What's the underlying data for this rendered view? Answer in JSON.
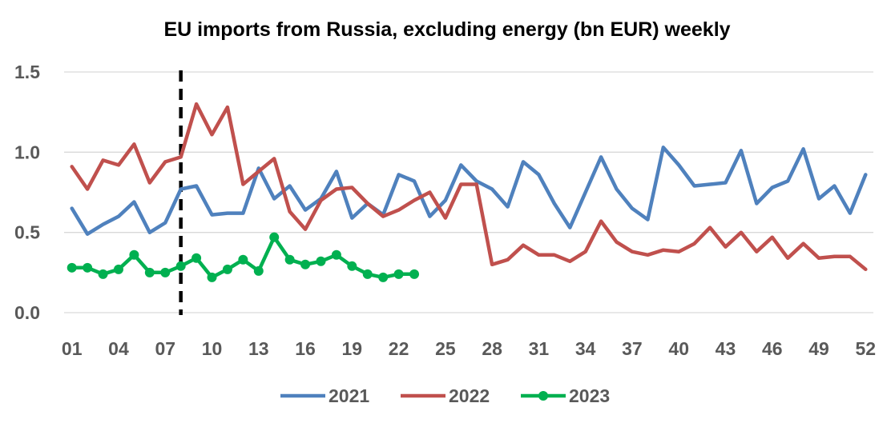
{
  "chart_data": {
    "type": "line",
    "title": "EU imports from Russia, excluding energy (bn EUR) weekly",
    "xlabel": "",
    "ylabel": "",
    "ylim": [
      0,
      1.5
    ],
    "yticks": [
      "0.0",
      "0.5",
      "1.0",
      "1.5"
    ],
    "grid": "horizontal",
    "legend_position": "bottom",
    "x_ticks": [
      "01",
      "04",
      "07",
      "10",
      "13",
      "16",
      "19",
      "22",
      "25",
      "28",
      "31",
      "34",
      "37",
      "40",
      "43",
      "46",
      "49",
      "52"
    ],
    "reference_line": {
      "week": 8,
      "style": "dashed",
      "color": "#000000"
    },
    "series": [
      {
        "name": "2021",
        "color": "#4F81BD",
        "markers": false,
        "x": [
          1,
          2,
          3,
          4,
          5,
          6,
          7,
          8,
          9,
          10,
          11,
          12,
          13,
          14,
          15,
          16,
          17,
          18,
          19,
          20,
          21,
          22,
          23,
          24,
          25,
          26,
          27,
          28,
          29,
          30,
          31,
          32,
          33,
          34,
          35,
          36,
          37,
          38,
          39,
          40,
          41,
          42,
          43,
          44,
          45,
          46,
          47,
          48,
          49,
          50,
          51,
          52
        ],
        "values": [
          0.65,
          0.49,
          0.55,
          0.6,
          0.69,
          0.5,
          0.56,
          0.77,
          0.79,
          0.61,
          0.62,
          0.62,
          0.9,
          0.71,
          0.79,
          0.64,
          0.71,
          0.88,
          0.59,
          0.68,
          0.61,
          0.86,
          0.82,
          0.6,
          0.7,
          0.92,
          0.82,
          0.77,
          0.66,
          0.94,
          0.86,
          0.68,
          0.53,
          0.75,
          0.97,
          0.77,
          0.65,
          0.58,
          1.03,
          0.92,
          0.79,
          0.8,
          0.81,
          1.01,
          0.68,
          0.78,
          0.82,
          1.02,
          0.71,
          0.79,
          0.62,
          0.86
        ]
      },
      {
        "name": "2022",
        "color": "#C0504D",
        "markers": false,
        "x": [
          1,
          2,
          3,
          4,
          5,
          6,
          7,
          8,
          9,
          10,
          11,
          12,
          13,
          14,
          15,
          16,
          17,
          18,
          19,
          20,
          21,
          22,
          23,
          24,
          25,
          26,
          27,
          28,
          29,
          30,
          31,
          32,
          33,
          34,
          35,
          36,
          37,
          38,
          39,
          40,
          41,
          42,
          43,
          44,
          45,
          46,
          47,
          48,
          49,
          50,
          51,
          52
        ],
        "values": [
          0.91,
          0.77,
          0.95,
          0.92,
          1.05,
          0.81,
          0.94,
          0.97,
          1.3,
          1.11,
          1.28,
          0.8,
          0.88,
          0.96,
          0.63,
          0.52,
          0.7,
          0.77,
          0.78,
          0.68,
          0.6,
          0.64,
          0.7,
          0.75,
          0.59,
          0.8,
          0.8,
          0.3,
          0.33,
          0.42,
          0.36,
          0.36,
          0.32,
          0.38,
          0.57,
          0.44,
          0.38,
          0.36,
          0.39,
          0.38,
          0.43,
          0.53,
          0.41,
          0.5,
          0.38,
          0.47,
          0.34,
          0.43,
          0.34,
          0.35,
          0.35,
          0.27
        ]
      },
      {
        "name": "2023",
        "color": "#00B050",
        "markers": true,
        "x": [
          1,
          2,
          3,
          4,
          5,
          6,
          7,
          8,
          9,
          10,
          11,
          12,
          13,
          14,
          15,
          16,
          17,
          18,
          19,
          20,
          21,
          22,
          23
        ],
        "values": [
          0.28,
          0.28,
          0.24,
          0.27,
          0.36,
          0.25,
          0.25,
          0.29,
          0.34,
          0.22,
          0.27,
          0.33,
          0.26,
          0.47,
          0.33,
          0.3,
          0.32,
          0.36,
          0.29,
          0.24,
          0.22,
          0.24,
          0.24
        ]
      }
    ]
  }
}
